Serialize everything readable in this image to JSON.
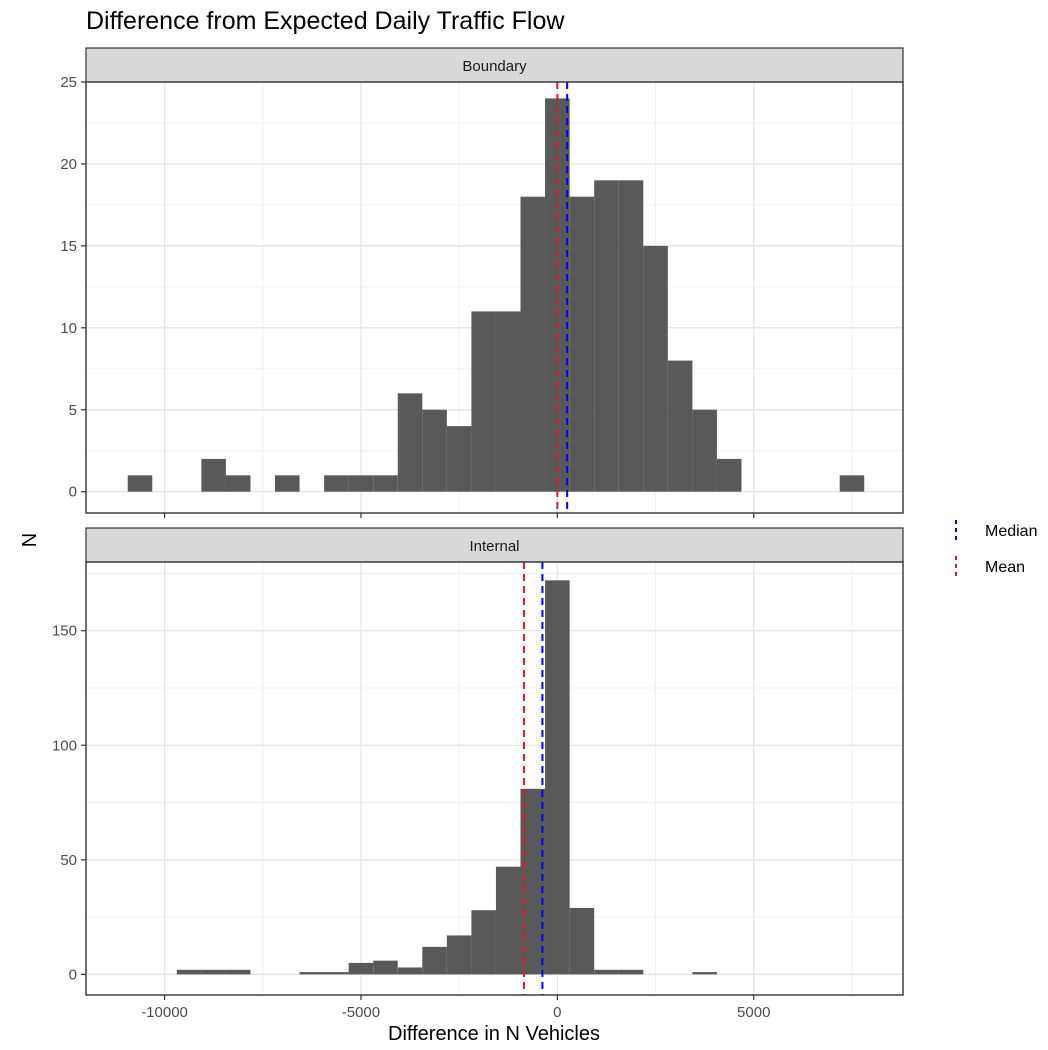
{
  "chart_data": {
    "type": "histogram",
    "title": "Difference from Expected Daily Traffic Flow",
    "xlabel": "Difference in N Vehicles",
    "ylabel": "N",
    "xlim": [
      -12000,
      8800
    ],
    "x_ticks": [
      -10000,
      -5000,
      0,
      5000
    ],
    "x_tick_labels": [
      "-10000",
      "-5000",
      "0",
      "5000"
    ],
    "bin_width": 625,
    "grid": true,
    "legend": {
      "position": "right",
      "entries": [
        {
          "label": "Median",
          "color": "#0000ff",
          "linetype": "dashed"
        },
        {
          "label": "Mean",
          "color": "#e41a1c",
          "linetype": "dashed"
        }
      ]
    },
    "colors": {
      "bar": "#595959",
      "median": "#0000ff",
      "mean": "#e41a1c",
      "strip": "#d9d9d9"
    },
    "panels": [
      {
        "strip": "Boundary",
        "ylim": [
          -1.3,
          25
        ],
        "y_ticks": [
          0,
          5,
          10,
          15,
          20,
          25
        ],
        "y_tick_labels": [
          "0",
          "5",
          "10",
          "15",
          "20",
          "25"
        ],
        "mean": 0,
        "median": 250,
        "bins": [
          {
            "x0": -10938,
            "x1": -10313,
            "count": 1
          },
          {
            "x0": -10313,
            "x1": -9688,
            "count": 0
          },
          {
            "x0": -9688,
            "x1": -9063,
            "count": 0
          },
          {
            "x0": -9063,
            "x1": -8438,
            "count": 2
          },
          {
            "x0": -8438,
            "x1": -7813,
            "count": 1
          },
          {
            "x0": -7813,
            "x1": -7188,
            "count": 0
          },
          {
            "x0": -7188,
            "x1": -6563,
            "count": 1
          },
          {
            "x0": -6563,
            "x1": -5938,
            "count": 0
          },
          {
            "x0": -5938,
            "x1": -5313,
            "count": 1
          },
          {
            "x0": -5313,
            "x1": -4688,
            "count": 1
          },
          {
            "x0": -4688,
            "x1": -4063,
            "count": 1
          },
          {
            "x0": -4063,
            "x1": -3438,
            "count": 6
          },
          {
            "x0": -3438,
            "x1": -2813,
            "count": 5
          },
          {
            "x0": -2813,
            "x1": -2188,
            "count": 4
          },
          {
            "x0": -2188,
            "x1": -1563,
            "count": 11
          },
          {
            "x0": -1563,
            "x1": -938,
            "count": 11
          },
          {
            "x0": -938,
            "x1": -313,
            "count": 18
          },
          {
            "x0": -313,
            "x1": 313,
            "count": 24
          },
          {
            "x0": 313,
            "x1": 938,
            "count": 18
          },
          {
            "x0": 938,
            "x1": 1563,
            "count": 19
          },
          {
            "x0": 1563,
            "x1": 2188,
            "count": 19
          },
          {
            "x0": 2188,
            "x1": 2813,
            "count": 15
          },
          {
            "x0": 2813,
            "x1": 3438,
            "count": 8
          },
          {
            "x0": 3438,
            "x1": 4063,
            "count": 5
          },
          {
            "x0": 4063,
            "x1": 4688,
            "count": 2
          },
          {
            "x0": 4688,
            "x1": 5313,
            "count": 0
          },
          {
            "x0": 5313,
            "x1": 5938,
            "count": 0
          },
          {
            "x0": 5938,
            "x1": 6563,
            "count": 0
          },
          {
            "x0": 6563,
            "x1": 7188,
            "count": 0
          },
          {
            "x0": 7188,
            "x1": 7813,
            "count": 1
          }
        ]
      },
      {
        "strip": "Internal",
        "ylim": [
          -9,
          180
        ],
        "y_ticks": [
          0,
          50,
          100,
          150
        ],
        "y_tick_labels": [
          "0",
          "50",
          "100",
          "150"
        ],
        "mean": -850,
        "median": -380,
        "bins": [
          {
            "x0": -9688,
            "x1": -9063,
            "count": 2
          },
          {
            "x0": -9063,
            "x1": -8438,
            "count": 2
          },
          {
            "x0": -8438,
            "x1": -7813,
            "count": 2
          },
          {
            "x0": -6563,
            "x1": -5938,
            "count": 1
          },
          {
            "x0": -5938,
            "x1": -5313,
            "count": 1
          },
          {
            "x0": -5313,
            "x1": -4688,
            "count": 5
          },
          {
            "x0": -4688,
            "x1": -4063,
            "count": 6
          },
          {
            "x0": -4063,
            "x1": -3438,
            "count": 3
          },
          {
            "x0": -3438,
            "x1": -2813,
            "count": 12
          },
          {
            "x0": -2813,
            "x1": -2188,
            "count": 17
          },
          {
            "x0": -2188,
            "x1": -1563,
            "count": 28
          },
          {
            "x0": -1563,
            "x1": -938,
            "count": 47
          },
          {
            "x0": -938,
            "x1": -313,
            "count": 81
          },
          {
            "x0": -313,
            "x1": 313,
            "count": 172
          },
          {
            "x0": 313,
            "x1": 938,
            "count": 29
          },
          {
            "x0": 938,
            "x1": 1563,
            "count": 2
          },
          {
            "x0": 1563,
            "x1": 2188,
            "count": 2
          },
          {
            "x0": 3438,
            "x1": 4063,
            "count": 1
          }
        ]
      }
    ]
  }
}
